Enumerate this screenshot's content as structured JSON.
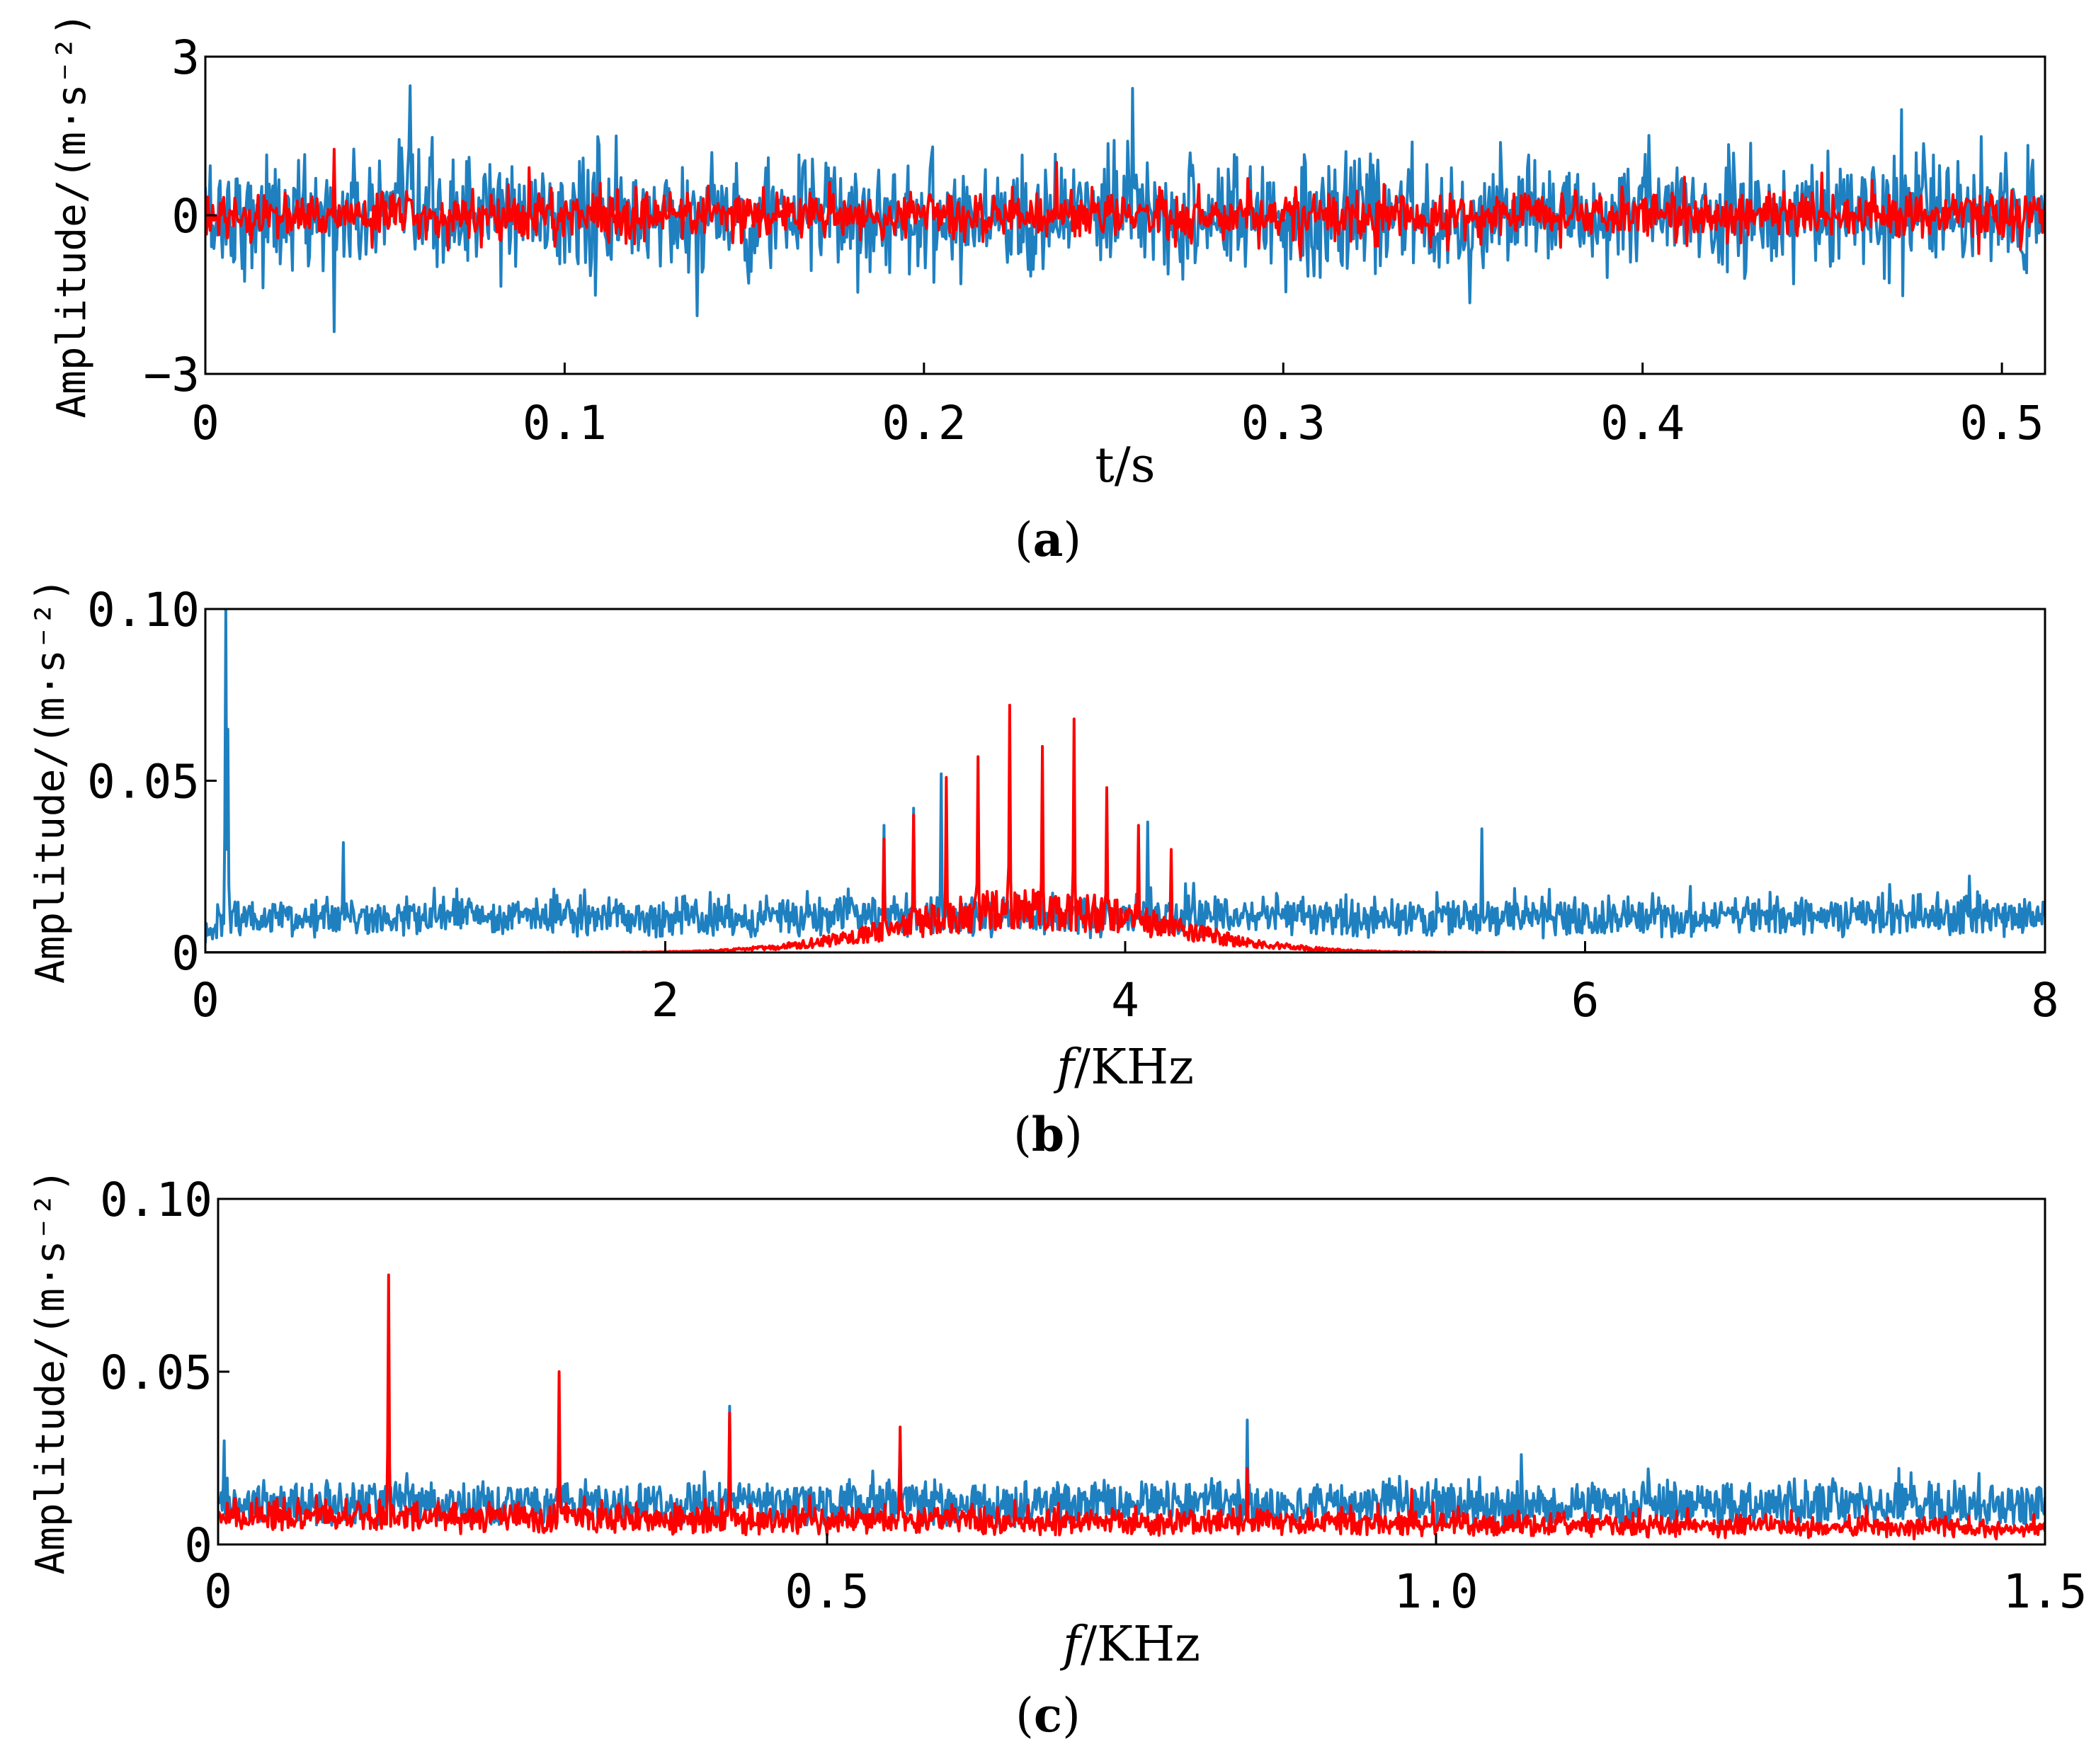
{
  "colors": {
    "series_blue": "#1f80c0",
    "series_red": "#ff0000",
    "axis": "#000000"
  },
  "chart_data": [
    {
      "panel": "a",
      "type": "line",
      "caption": "(a)",
      "xlabel": "t/s",
      "ylabel": "Amplitude/(m·s⁻²)",
      "xlim": [
        0,
        0.512
      ],
      "ylim": [
        -3,
        3
      ],
      "xticks": [
        0,
        0.1,
        0.2,
        0.3,
        0.4,
        0.5
      ],
      "xtick_labels": [
        "0",
        "0.1",
        "0.2",
        "0.3",
        "0.4",
        "0.5"
      ],
      "yticks": [
        -3,
        0,
        3
      ],
      "ytick_labels": [
        "−3",
        "0",
        "3"
      ],
      "grid": false,
      "legend": "none",
      "series": [
        {
          "color": "#1f80c0",
          "approx_amplitude_range": [
            -2.2,
            2.5
          ],
          "peaks": [
            [
              0.036,
              -2.2
            ],
            [
              0.057,
              2.45
            ],
            [
              0.258,
              2.4
            ],
            [
              0.472,
              2.0
            ],
            [
              0.137,
              -1.9
            ]
          ]
        },
        {
          "color": "#ff0000",
          "approx_amplitude_range": [
            -0.9,
            1.3
          ],
          "peaks": [
            [
              0.036,
              1.25
            ],
            [
              0.09,
              0.9
            ],
            [
              0.237,
              1.0
            ],
            [
              0.45,
              0.8
            ]
          ]
        }
      ]
    },
    {
      "panel": "b",
      "type": "line",
      "caption": "(b)",
      "xlabel": "f/KHz",
      "ylabel": "Amplitude/(m·s⁻²)",
      "xlim": [
        0,
        8
      ],
      "ylim": [
        0,
        0.1
      ],
      "xticks": [
        0,
        2,
        4,
        6,
        8
      ],
      "xtick_labels": [
        "0",
        "2",
        "4",
        "6",
        "8"
      ],
      "yticks": [
        0,
        0.05,
        0.1
      ],
      "ytick_labels": [
        "0",
        "0.05",
        "0.10"
      ],
      "grid": false,
      "legend": "none",
      "series": [
        {
          "color": "#1f80c0",
          "noise_floor": 0.012,
          "peaks": [
            [
              0.09,
              0.1
            ],
            [
              0.1,
              0.065
            ],
            [
              3.2,
              0.052
            ],
            [
              3.08,
              0.042
            ],
            [
              2.95,
              0.037
            ],
            [
              4.1,
              0.038
            ],
            [
              5.55,
              0.036
            ],
            [
              0.6,
              0.032
            ]
          ]
        },
        {
          "color": "#ff0000",
          "band_center": 3.6,
          "band_width": 0.55,
          "peaks": [
            [
              3.5,
              0.072
            ],
            [
              3.78,
              0.068
            ],
            [
              3.64,
              0.06
            ],
            [
              3.36,
              0.057
            ],
            [
              3.22,
              0.051
            ],
            [
              3.92,
              0.048
            ],
            [
              3.08,
              0.04
            ],
            [
              4.06,
              0.037
            ],
            [
              2.95,
              0.033
            ],
            [
              4.2,
              0.03
            ]
          ]
        }
      ]
    },
    {
      "panel": "c",
      "type": "line",
      "caption": "(c)",
      "xlabel": "f/KHz",
      "ylabel": "Amplitude/(m·s⁻²)",
      "xlim": [
        0,
        1.5
      ],
      "ylim": [
        0,
        0.1
      ],
      "xticks": [
        0,
        0.5,
        1.0,
        1.5
      ],
      "xtick_labels": [
        "0",
        "0.5",
        "1.0",
        "1.5"
      ],
      "yticks": [
        0,
        0.05,
        0.1
      ],
      "ytick_labels": [
        "0",
        "0.05",
        "0.10"
      ],
      "grid": false,
      "legend": "none",
      "series": [
        {
          "color": "#1f80c0",
          "noise_floor": 0.012,
          "peaks": [
            [
              0.005,
              0.03
            ],
            [
              0.42,
              0.04
            ],
            [
              0.56,
              0.03
            ],
            [
              0.845,
              0.036
            ],
            [
              1.07,
              0.026
            ],
            [
              1.38,
              0.022
            ]
          ]
        },
        {
          "color": "#ff0000",
          "noise_floor": 0.008,
          "peaks": [
            [
              0.14,
              0.078
            ],
            [
              0.28,
              0.05
            ],
            [
              0.42,
              0.038
            ],
            [
              0.56,
              0.034
            ],
            [
              0.845,
              0.022
            ],
            [
              0.98,
              0.016
            ]
          ]
        }
      ]
    }
  ]
}
